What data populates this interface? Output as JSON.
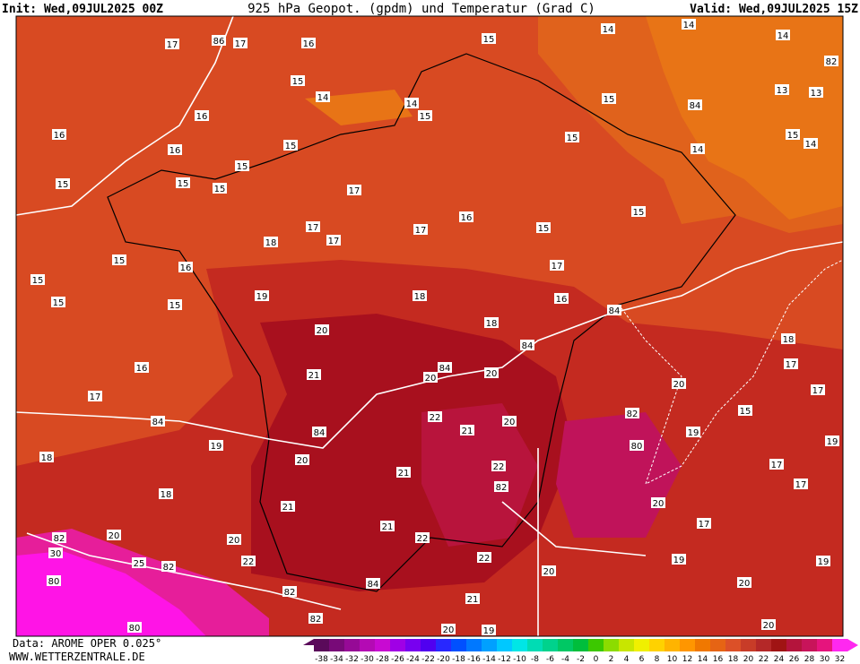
{
  "header": {
    "init": "Init: Wed,09JUL2025 00Z",
    "title": "925 hPa Geopot. (gpdm) und Temperatur (Grad C)",
    "valid": "Valid: Wed,09JUL2025 15Z"
  },
  "map_labels": [
    "17",
    "86",
    "17",
    "16",
    "15",
    "14",
    "14",
    "14",
    "82",
    "15",
    "14",
    "14",
    "15",
    "15",
    "84",
    "13",
    "13",
    "16",
    "16",
    "16",
    "15",
    "15",
    "15",
    "14",
    "14",
    "15",
    "15",
    "15",
    "15",
    "17",
    "15",
    "16",
    "15",
    "17",
    "17",
    "17",
    "18",
    "15",
    "16",
    "15",
    "15",
    "15",
    "19",
    "18",
    "17",
    "16",
    "84",
    "20",
    "18",
    "84",
    "16",
    "17",
    "84",
    "21",
    "20",
    "20",
    "84",
    "22",
    "20",
    "21",
    "84",
    "19",
    "18",
    "20",
    "21",
    "22",
    "82",
    "18",
    "21",
    "21",
    "22",
    "20",
    "20",
    "82",
    "30",
    "25",
    "82",
    "22",
    "22",
    "20",
    "80",
    "82",
    "84",
    "21",
    "80",
    "82",
    "20",
    "19",
    "17",
    "19",
    "15",
    "17",
    "18",
    "17",
    "19",
    "20",
    "80",
    "82",
    "20",
    "19",
    "17",
    "19",
    "17",
    "20",
    "20"
  ],
  "footer": {
    "source": "Data: AROME OPER 0.025°",
    "site": "WWW.WETTERZENTRALE.DE"
  },
  "colorbar": {
    "labels": [
      "-38",
      "-34",
      "-32",
      "-30",
      "-28",
      "-26",
      "-24",
      "-22",
      "-20",
      "-18",
      "-16",
      "-14",
      "-12",
      "-10",
      "-8",
      "-6",
      "-4",
      "-2",
      "0",
      "2",
      "4",
      "6",
      "8",
      "10",
      "12",
      "14",
      "16",
      "18",
      "20",
      "22",
      "24",
      "26",
      "28",
      "30",
      "32"
    ],
    "colors": [
      "#5a0a5a",
      "#780a78",
      "#960a96",
      "#b40ab4",
      "#c80ad2",
      "#a000e6",
      "#7800f0",
      "#5000f0",
      "#2828ff",
      "#0050ff",
      "#0078ff",
      "#00a0ff",
      "#00c8ff",
      "#00e6e6",
      "#00dcb4",
      "#00d28c",
      "#00c864",
      "#00be3c",
      "#3cc800",
      "#8cdc00",
      "#c8e600",
      "#f0f000",
      "#ffd200",
      "#ffb400",
      "#ff9600",
      "#f07800",
      "#e66414",
      "#dc5028",
      "#c83c28",
      "#b42828",
      "#a01414",
      "#b4143c",
      "#c8145a",
      "#e6147d",
      "#ff28f0"
    ]
  }
}
